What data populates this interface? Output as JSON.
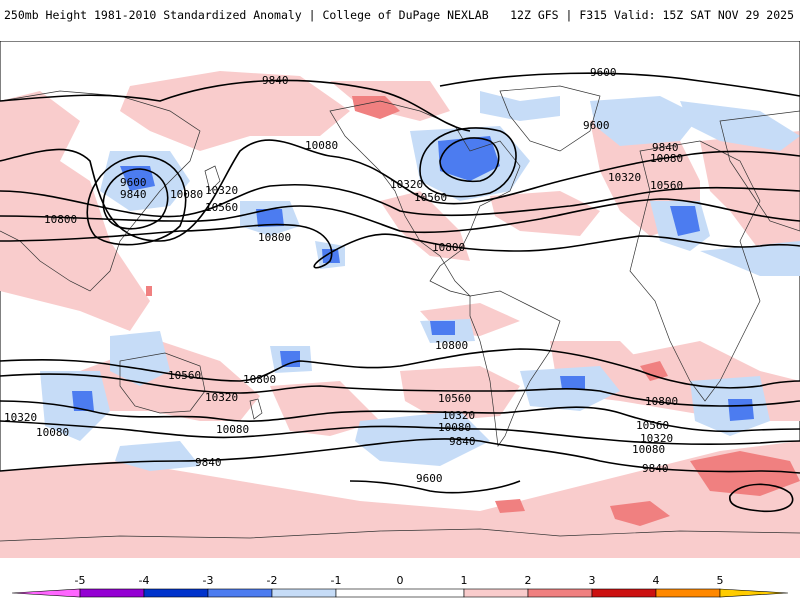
{
  "header": {
    "left_title": "250mb Height 1981-2010 Standardized Anomaly | College of DuPage NEXLAB",
    "right_title": "12Z GFS | F315 Valid: 15Z SAT NOV 29 2025"
  },
  "colors": {
    "neg5": "#ff66ff",
    "neg4": "#9400d3",
    "neg3": "#0033cc",
    "neg2": "#4c7cf0",
    "neg1": "#c6dcf7",
    "zero": "#ffffff",
    "pos1": "#f9cccc",
    "pos2": "#f08080",
    "pos3": "#cc1111",
    "pos4": "#ff8800",
    "pos5": "#ffcc00",
    "contour": "#000000",
    "coast": "#333333"
  },
  "colorbar": {
    "ticks": [
      "-5",
      "-4",
      "-3",
      "-2",
      "-1",
      "0",
      "1",
      "2",
      "3",
      "4",
      "5"
    ]
  },
  "contour_labels": [
    "9840",
    "9600",
    "9600",
    "9840",
    "10080",
    "9600",
    "9840",
    "10080",
    "10320",
    "10560",
    "10800",
    "10080",
    "10320",
    "10560",
    "10800",
    "10320",
    "10560",
    "10080",
    "10800",
    "10560",
    "10800",
    "10320",
    "10560",
    "10320",
    "10080",
    "10800",
    "10080",
    "10560",
    "10320",
    "9840",
    "9600",
    "9840",
    "10080",
    "9840",
    "10800",
    "10320",
    "10080",
    "10560"
  ]
}
